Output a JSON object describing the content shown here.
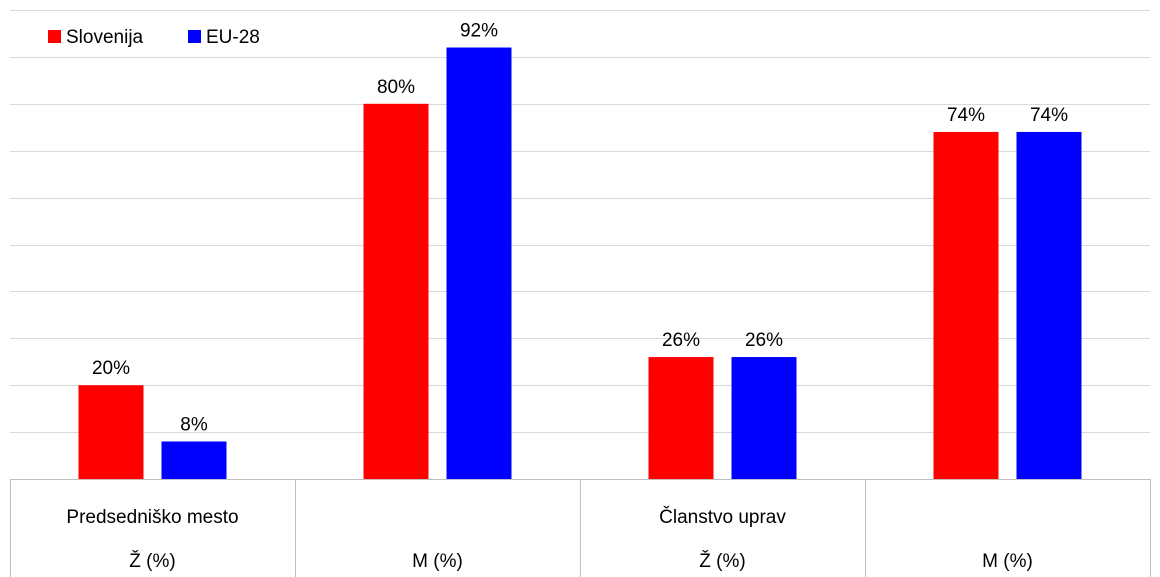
{
  "chart_data": {
    "type": "bar",
    "categories": [
      "Ž (%)",
      "M (%)",
      "Ž (%)",
      "M (%)"
    ],
    "groups": [
      {
        "label": "Predsedniško mesto",
        "span": [
          0,
          1
        ]
      },
      {
        "label": "Članstvo uprav",
        "span": [
          2,
          3
        ]
      }
    ],
    "series": [
      {
        "name": "Slovenija",
        "color": "#ff0000",
        "values": [
          20,
          80,
          26,
          74
        ],
        "labels": [
          "20%",
          "80%",
          "26%",
          "74%"
        ]
      },
      {
        "name": "EU-28",
        "color": "#0000ff",
        "values": [
          8,
          92,
          26,
          74
        ],
        "labels": [
          "8%",
          "92%",
          "26%",
          "74%"
        ]
      }
    ],
    "ylim": [
      0,
      100
    ],
    "grid": true,
    "legend": "top-left",
    "title": "",
    "xlabel": "",
    "ylabel": ""
  }
}
